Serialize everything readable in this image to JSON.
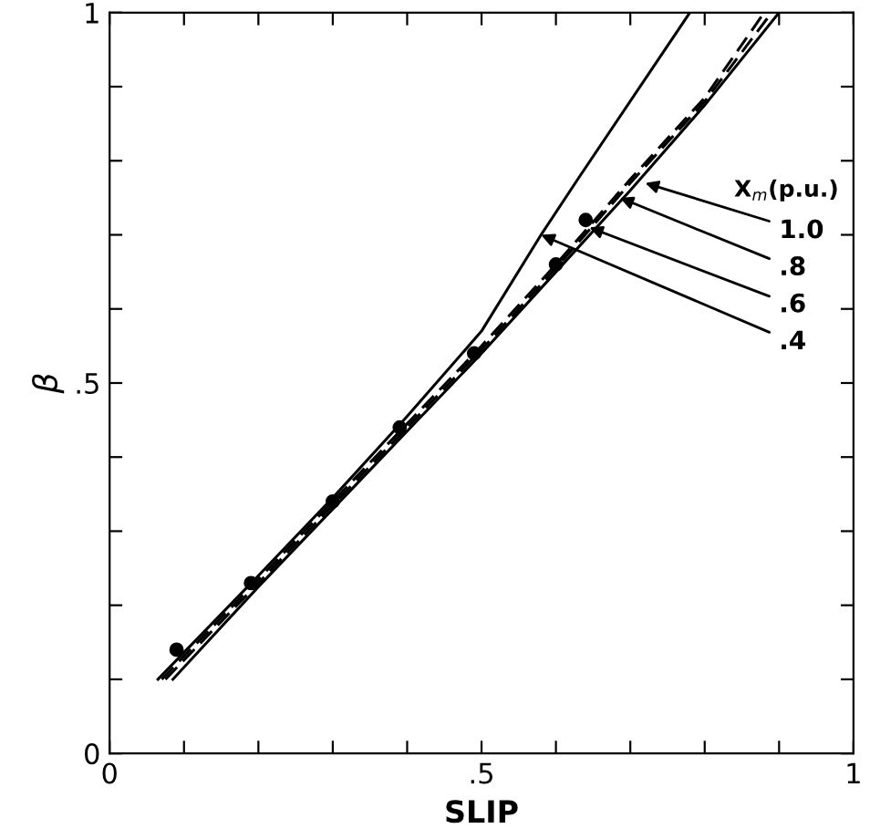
{
  "chart_data": {
    "type": "line",
    "xlabel": "SLIP",
    "ylabel": "β",
    "legend_title": "X$_{m}$(p.u.)",
    "xlim": [
      0,
      1
    ],
    "ylim": [
      0,
      1
    ],
    "xticks": [
      0,
      {
        "value": 0.1,
        "label": null
      },
      {
        "value": 0.2,
        "label": null
      },
      {
        "value": 0.3,
        "label": null
      },
      {
        "value": 0.4,
        "label": null
      },
      {
        "value": 0.5,
        "label": ".5"
      },
      {
        "value": 0.6,
        "label": null
      },
      {
        "value": 0.7,
        "label": null
      },
      {
        "value": 0.8,
        "label": null
      },
      {
        "value": 0.9,
        "label": null
      },
      1
    ],
    "yticks": [
      0,
      {
        "value": 0.1,
        "label": null
      },
      {
        "value": 0.2,
        "label": null
      },
      {
        "value": 0.3,
        "label": null
      },
      {
        "value": 0.4,
        "label": null
      },
      {
        "value": 0.5,
        "label": ".5"
      },
      {
        "value": 0.6,
        "label": null
      },
      {
        "value": 0.7,
        "label": null
      },
      {
        "value": 0.8,
        "label": null
      },
      {
        "value": 0.9,
        "label": null
      },
      1
    ],
    "grid": false,
    "legend": false,
    "series": [
      {
        "color": "#000000",
        "line_style": "solid",
        "marker": "none",
        "x": [
          0.065,
          0.2,
          0.3,
          0.4,
          0.5,
          0.58,
          0.63,
          0.78
        ],
        "values": [
          0.1,
          0.24,
          0.345,
          0.455,
          0.57,
          0.7,
          0.776,
          1.0
        ]
      },
      {
        "color": "#000000",
        "line_style": "dashed",
        "marker": "none",
        "x": [
          0.07,
          0.2,
          0.3,
          0.4,
          0.5,
          0.6,
          0.7,
          0.8,
          0.88
        ],
        "values": [
          0.1,
          0.235,
          0.34,
          0.445,
          0.55,
          0.66,
          0.775,
          0.885,
          1.0
        ]
      },
      {
        "color": "#000000",
        "line_style": "dashed",
        "marker": "none",
        "x": [
          0.075,
          0.2,
          0.3,
          0.4,
          0.5,
          0.6,
          0.7,
          0.8,
          0.89
        ],
        "values": [
          0.1,
          0.23,
          0.335,
          0.44,
          0.545,
          0.655,
          0.77,
          0.88,
          1.0
        ]
      },
      {
        "color": "#000000",
        "line_style": "solid",
        "marker": "none",
        "x": [
          0.085,
          0.2,
          0.3,
          0.4,
          0.5,
          0.6,
          0.7,
          0.8,
          0.9
        ],
        "values": [
          0.1,
          0.225,
          0.33,
          0.435,
          0.54,
          0.65,
          0.76,
          0.875,
          1.0
        ]
      },
      {
        "type": "scatter",
        "color": "#000000",
        "marker": "circle",
        "x": [
          0.09,
          0.19,
          0.3,
          0.39,
          0.49,
          0.6,
          0.64
        ],
        "values": [
          0.14,
          0.23,
          0.34,
          0.44,
          0.54,
          0.66,
          0.72
        ]
      }
    ],
    "annotations": [
      {
        "text": "1.0",
        "x": 0.72,
        "y": 0.77
      },
      {
        "text": ".8",
        "x": 0.686,
        "y": 0.75
      },
      {
        "text": ".6",
        "x": 0.645,
        "y": 0.71
      },
      {
        "text": ".4",
        "x": 0.58,
        "y": 0.7
      }
    ]
  }
}
